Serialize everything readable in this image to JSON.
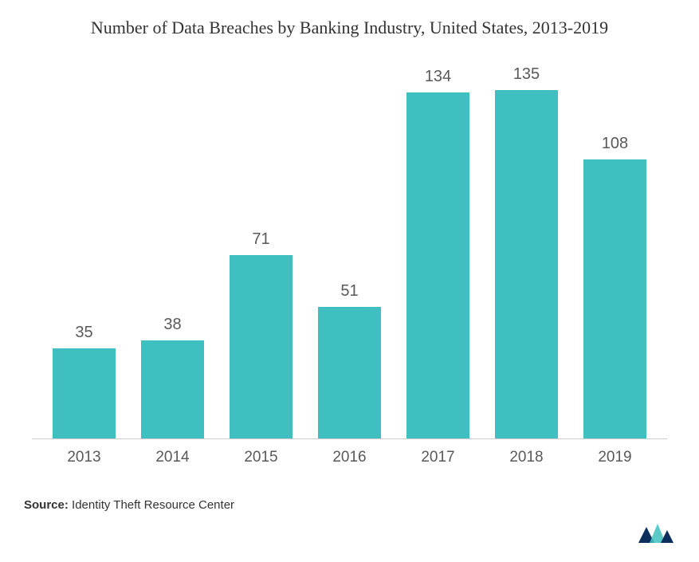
{
  "chart": {
    "type": "bar",
    "title": "Number of Data Breaches by Banking Industry, United States, 2013-2019",
    "title_fontsize": 22,
    "title_color": "#333333",
    "categories": [
      "2013",
      "2014",
      "2015",
      "2016",
      "2017",
      "2018",
      "2019"
    ],
    "values": [
      35,
      38,
      71,
      51,
      134,
      135,
      108
    ],
    "bar_color": "#3fbfbf",
    "value_label_color": "#595959",
    "value_label_fontsize": 20,
    "x_label_color": "#595959",
    "x_label_fontsize": 19,
    "ylim_max": 145,
    "axis_line_color": "#cccccc",
    "background_color": "#ffffff",
    "bar_width_pct": 72
  },
  "source": {
    "label": "Source:",
    "text": "Identity Theft Resource Center"
  },
  "logo": {
    "primary_color": "#0b2e5c",
    "accent_color": "#3fbfbf"
  }
}
